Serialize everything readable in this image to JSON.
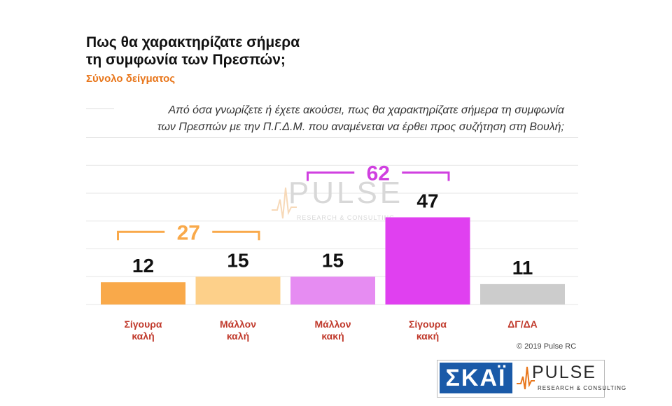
{
  "header": {
    "title_line1": "Πως θα χαρακτηρίζατε σήμερα",
    "title_line2": "τη συμφωνία των Πρεσπών;",
    "subtitle": "Σύνολο δείγματος"
  },
  "question": {
    "line1": "Από όσα γνωρίζετε ή έχετε ακούσει, πως θα χαρακτηρίζατε σήμερα τη συμφωνία",
    "line2": "των Πρεσπών με την Π.Γ.Δ.Μ. που αναμένεται να έρθει προς συζήτηση στη Βουλή;"
  },
  "chart_data": {
    "type": "bar",
    "categories": [
      [
        "Σίγουρα",
        "καλή"
      ],
      [
        "Μάλλον",
        "καλή"
      ],
      [
        "Μάλλον",
        "κακή"
      ],
      [
        "Σίγουρα",
        "κακή"
      ],
      [
        "ΔΓ/ΔΑ"
      ]
    ],
    "values": [
      12,
      15,
      15,
      47,
      11
    ],
    "colors": [
      "#f9a94a",
      "#fdd08a",
      "#e68cf2",
      "#e040f0",
      "#cccccc"
    ],
    "ylim": [
      0,
      100
    ],
    "grid": true,
    "groups": [
      {
        "label": "27",
        "from": 0,
        "to": 1,
        "color": "#f9a94a"
      },
      {
        "label": "62",
        "from": 2,
        "to": 3,
        "color": "#d040e0"
      }
    ]
  },
  "watermark": {
    "name": "PULSE",
    "sub": "RESEARCH & CONSULTING"
  },
  "footer": {
    "copyright": "© 2019 Pulse RC",
    "logo_left": "ΣΚΑΪ",
    "logo_right": "PULSE",
    "logo_right_sub": "RESEARCH & CONSULTING"
  }
}
